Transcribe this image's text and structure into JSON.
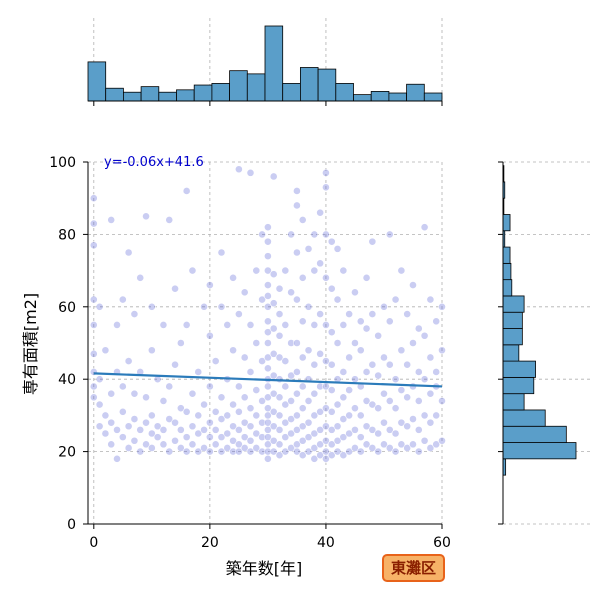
{
  "badge": {
    "label": "東灘区"
  },
  "chart_data": {
    "type": "scatter",
    "xlabel": "築年数[年]",
    "ylabel": "専有面積[m2]",
    "xlim": [
      -1,
      60
    ],
    "ylim": [
      0,
      100
    ],
    "xticks": [
      0,
      20,
      40,
      60
    ],
    "yticks": [
      0,
      20,
      40,
      60,
      80,
      100
    ],
    "grid": true,
    "regression": {
      "equation": "y=-0.06x+41.6",
      "slope": -0.06,
      "intercept": 41.6
    },
    "colors": {
      "point": "#5a63d6",
      "regression": "#2b7bba",
      "bar": "#5a9ec9",
      "badge_fill": "#f7b267",
      "badge_border": "#e8631a",
      "equation": "#0000cc"
    },
    "scatter_points": [
      [
        0,
        35
      ],
      [
        0,
        38
      ],
      [
        0,
        42
      ],
      [
        0,
        47
      ],
      [
        0,
        55
      ],
      [
        0,
        62
      ],
      [
        0,
        77
      ],
      [
        0,
        83
      ],
      [
        0,
        90
      ],
      [
        1,
        27
      ],
      [
        1,
        33
      ],
      [
        1,
        40
      ],
      [
        1,
        60
      ],
      [
        2,
        25
      ],
      [
        2,
        30
      ],
      [
        2,
        48
      ],
      [
        3,
        22
      ],
      [
        3,
        28
      ],
      [
        3,
        36
      ],
      [
        3,
        84
      ],
      [
        4,
        18
      ],
      [
        4,
        26
      ],
      [
        4,
        42
      ],
      [
        4,
        55
      ],
      [
        5,
        24
      ],
      [
        5,
        31
      ],
      [
        5,
        38
      ],
      [
        5,
        62
      ],
      [
        6,
        21
      ],
      [
        6,
        27
      ],
      [
        6,
        45
      ],
      [
        6,
        75
      ],
      [
        7,
        23
      ],
      [
        7,
        29
      ],
      [
        7,
        36
      ],
      [
        7,
        58
      ],
      [
        8,
        20
      ],
      [
        8,
        26
      ],
      [
        8,
        42
      ],
      [
        8,
        68
      ],
      [
        9,
        22
      ],
      [
        9,
        28
      ],
      [
        9,
        35
      ],
      [
        9,
        85
      ],
      [
        10,
        21
      ],
      [
        10,
        25
      ],
      [
        10,
        30
      ],
      [
        10,
        48
      ],
      [
        10,
        60
      ],
      [
        11,
        24
      ],
      [
        11,
        27
      ],
      [
        11,
        40
      ],
      [
        12,
        22
      ],
      [
        12,
        26
      ],
      [
        12,
        34
      ],
      [
        12,
        55
      ],
      [
        13,
        20
      ],
      [
        13,
        29
      ],
      [
        13,
        38
      ],
      [
        13,
        84
      ],
      [
        14,
        23
      ],
      [
        14,
        28
      ],
      [
        14,
        44
      ],
      [
        14,
        65
      ],
      [
        15,
        21
      ],
      [
        15,
        26
      ],
      [
        15,
        32
      ],
      [
        15,
        50
      ],
      [
        16,
        20
      ],
      [
        16,
        24
      ],
      [
        16,
        31
      ],
      [
        16,
        55
      ],
      [
        16,
        92
      ],
      [
        17,
        22
      ],
      [
        17,
        27
      ],
      [
        17,
        36
      ],
      [
        17,
        70
      ],
      [
        18,
        20
      ],
      [
        18,
        25
      ],
      [
        18,
        30
      ],
      [
        18,
        42
      ],
      [
        19,
        21
      ],
      [
        19,
        26
      ],
      [
        19,
        33
      ],
      [
        19,
        60
      ],
      [
        20,
        20
      ],
      [
        20,
        24
      ],
      [
        20,
        28
      ],
      [
        20,
        38
      ],
      [
        20,
        52
      ],
      [
        20,
        66
      ],
      [
        21,
        22
      ],
      [
        21,
        26
      ],
      [
        21,
        31
      ],
      [
        21,
        45
      ],
      [
        22,
        20
      ],
      [
        22,
        24
      ],
      [
        22,
        29
      ],
      [
        22,
        35
      ],
      [
        22,
        60
      ],
      [
        22,
        75
      ],
      [
        23,
        21
      ],
      [
        23,
        25
      ],
      [
        23,
        30
      ],
      [
        23,
        40
      ],
      [
        23,
        55
      ],
      [
        24,
        20
      ],
      [
        24,
        23
      ],
      [
        24,
        27
      ],
      [
        24,
        33
      ],
      [
        24,
        48
      ],
      [
        24,
        68
      ],
      [
        25,
        20
      ],
      [
        25,
        22
      ],
      [
        25,
        26
      ],
      [
        25,
        31
      ],
      [
        25,
        38
      ],
      [
        25,
        58
      ],
      [
        25,
        98
      ],
      [
        26,
        21
      ],
      [
        26,
        24
      ],
      [
        26,
        28
      ],
      [
        26,
        35
      ],
      [
        26,
        46
      ],
      [
        26,
        64
      ],
      [
        27,
        20
      ],
      [
        27,
        23
      ],
      [
        27,
        27
      ],
      [
        27,
        32
      ],
      [
        27,
        42
      ],
      [
        27,
        55
      ],
      [
        27,
        97
      ],
      [
        28,
        21
      ],
      [
        28,
        25
      ],
      [
        28,
        30
      ],
      [
        28,
        37
      ],
      [
        28,
        50
      ],
      [
        28,
        70
      ],
      [
        29,
        20
      ],
      [
        29,
        24
      ],
      [
        29,
        28
      ],
      [
        29,
        34
      ],
      [
        29,
        45
      ],
      [
        29,
        62
      ],
      [
        29,
        80
      ],
      [
        30,
        18
      ],
      [
        30,
        20
      ],
      [
        30,
        22
      ],
      [
        30,
        24
      ],
      [
        30,
        26
      ],
      [
        30,
        28
      ],
      [
        30,
        30
      ],
      [
        30,
        32
      ],
      [
        30,
        35
      ],
      [
        30,
        38
      ],
      [
        30,
        40
      ],
      [
        30,
        43
      ],
      [
        30,
        46
      ],
      [
        30,
        50
      ],
      [
        30,
        53
      ],
      [
        30,
        56
      ],
      [
        30,
        60
      ],
      [
        30,
        63
      ],
      [
        30,
        66
      ],
      [
        30,
        70
      ],
      [
        30,
        74
      ],
      [
        30,
        78
      ],
      [
        30,
        82
      ],
      [
        31,
        20
      ],
      [
        31,
        23
      ],
      [
        31,
        27
      ],
      [
        31,
        31
      ],
      [
        31,
        36
      ],
      [
        31,
        41
      ],
      [
        31,
        47
      ],
      [
        31,
        54
      ],
      [
        31,
        61
      ],
      [
        31,
        69
      ],
      [
        31,
        96
      ],
      [
        32,
        19
      ],
      [
        32,
        22
      ],
      [
        32,
        26
      ],
      [
        32,
        30
      ],
      [
        32,
        35
      ],
      [
        32,
        40
      ],
      [
        32,
        46
      ],
      [
        32,
        52
      ],
      [
        32,
        58
      ],
      [
        32,
        65
      ],
      [
        33,
        20
      ],
      [
        33,
        24
      ],
      [
        33,
        28
      ],
      [
        33,
        33
      ],
      [
        33,
        38
      ],
      [
        33,
        45
      ],
      [
        33,
        55
      ],
      [
        33,
        70
      ],
      [
        34,
        21
      ],
      [
        34,
        25
      ],
      [
        34,
        29
      ],
      [
        34,
        34
      ],
      [
        34,
        41
      ],
      [
        34,
        50
      ],
      [
        34,
        64
      ],
      [
        34,
        80
      ],
      [
        35,
        20
      ],
      [
        35,
        22
      ],
      [
        35,
        26
      ],
      [
        35,
        30
      ],
      [
        35,
        36
      ],
      [
        35,
        42
      ],
      [
        35,
        50
      ],
      [
        35,
        62
      ],
      [
        35,
        75
      ],
      [
        35,
        88
      ],
      [
        35,
        92
      ],
      [
        36,
        19
      ],
      [
        36,
        23
      ],
      [
        36,
        27
      ],
      [
        36,
        32
      ],
      [
        36,
        38
      ],
      [
        36,
        46
      ],
      [
        36,
        56
      ],
      [
        36,
        68
      ],
      [
        36,
        84
      ],
      [
        37,
        20
      ],
      [
        37,
        24
      ],
      [
        37,
        28
      ],
      [
        37,
        34
      ],
      [
        37,
        40
      ],
      [
        37,
        48
      ],
      [
        37,
        60
      ],
      [
        37,
        76
      ],
      [
        38,
        18
      ],
      [
        38,
        21
      ],
      [
        38,
        25
      ],
      [
        38,
        30
      ],
      [
        38,
        36
      ],
      [
        38,
        44
      ],
      [
        38,
        55
      ],
      [
        38,
        70
      ],
      [
        38,
        80
      ],
      [
        39,
        19
      ],
      [
        39,
        22
      ],
      [
        39,
        26
      ],
      [
        39,
        31
      ],
      [
        39,
        38
      ],
      [
        39,
        47
      ],
      [
        39,
        58
      ],
      [
        39,
        72
      ],
      [
        39,
        86
      ],
      [
        40,
        18
      ],
      [
        40,
        20
      ],
      [
        40,
        23
      ],
      [
        40,
        27
      ],
      [
        40,
        32
      ],
      [
        40,
        38
      ],
      [
        40,
        45
      ],
      [
        40,
        55
      ],
      [
        40,
        68
      ],
      [
        40,
        80
      ],
      [
        40,
        93
      ],
      [
        40,
        97
      ],
      [
        41,
        19
      ],
      [
        41,
        22
      ],
      [
        41,
        26
      ],
      [
        41,
        31
      ],
      [
        41,
        37
      ],
      [
        41,
        44
      ],
      [
        41,
        53
      ],
      [
        41,
        65
      ],
      [
        41,
        78
      ],
      [
        42,
        20
      ],
      [
        42,
        23
      ],
      [
        42,
        27
      ],
      [
        42,
        33
      ],
      [
        42,
        40
      ],
      [
        42,
        50
      ],
      [
        42,
        62
      ],
      [
        42,
        76
      ],
      [
        43,
        19
      ],
      [
        43,
        24
      ],
      [
        43,
        29
      ],
      [
        43,
        35
      ],
      [
        43,
        42
      ],
      [
        43,
        55
      ],
      [
        43,
        70
      ],
      [
        44,
        20
      ],
      [
        44,
        25
      ],
      [
        44,
        30
      ],
      [
        44,
        37
      ],
      [
        44,
        46
      ],
      [
        44,
        58
      ],
      [
        45,
        21
      ],
      [
        45,
        26
      ],
      [
        45,
        32
      ],
      [
        45,
        40
      ],
      [
        45,
        50
      ],
      [
        45,
        64
      ],
      [
        46,
        20
      ],
      [
        46,
        24
      ],
      [
        46,
        30
      ],
      [
        46,
        38
      ],
      [
        46,
        48
      ],
      [
        46,
        56
      ],
      [
        47,
        22
      ],
      [
        47,
        27
      ],
      [
        47,
        34
      ],
      [
        47,
        42
      ],
      [
        47,
        54
      ],
      [
        47,
        68
      ],
      [
        48,
        21
      ],
      [
        48,
        26
      ],
      [
        48,
        33
      ],
      [
        48,
        44
      ],
      [
        48,
        58
      ],
      [
        48,
        78
      ],
      [
        49,
        20
      ],
      [
        49,
        25
      ],
      [
        49,
        32
      ],
      [
        49,
        41
      ],
      [
        49,
        52
      ],
      [
        50,
        22
      ],
      [
        50,
        28
      ],
      [
        50,
        36
      ],
      [
        50,
        46
      ],
      [
        50,
        60
      ],
      [
        51,
        21
      ],
      [
        51,
        26
      ],
      [
        51,
        34
      ],
      [
        51,
        44
      ],
      [
        51,
        56
      ],
      [
        51,
        80
      ],
      [
        52,
        20
      ],
      [
        52,
        25
      ],
      [
        52,
        32
      ],
      [
        52,
        40
      ],
      [
        52,
        62
      ],
      [
        53,
        22
      ],
      [
        53,
        28
      ],
      [
        53,
        37
      ],
      [
        53,
        48
      ],
      [
        53,
        70
      ],
      [
        54,
        21
      ],
      [
        54,
        27
      ],
      [
        54,
        35
      ],
      [
        54,
        44
      ],
      [
        54,
        58
      ],
      [
        55,
        22
      ],
      [
        55,
        29
      ],
      [
        55,
        38
      ],
      [
        55,
        50
      ],
      [
        55,
        66
      ],
      [
        56,
        20
      ],
      [
        56,
        26
      ],
      [
        56,
        34
      ],
      [
        56,
        42
      ],
      [
        56,
        54
      ],
      [
        57,
        23
      ],
      [
        57,
        30
      ],
      [
        57,
        40
      ],
      [
        57,
        52
      ],
      [
        57,
        82
      ],
      [
        58,
        21
      ],
      [
        58,
        28
      ],
      [
        58,
        36
      ],
      [
        58,
        46
      ],
      [
        58,
        62
      ],
      [
        59,
        22
      ],
      [
        59,
        30
      ],
      [
        59,
        42
      ],
      [
        59,
        56
      ],
      [
        59,
        38
      ],
      [
        60,
        23
      ],
      [
        60,
        34
      ],
      [
        60,
        48
      ],
      [
        60,
        60
      ]
    ],
    "x_histogram": {
      "bin_edges": [
        -1,
        2.05,
        5.1,
        8.15,
        11.2,
        14.25,
        17.3,
        20.35,
        23.4,
        26.45,
        29.5,
        32.55,
        35.6,
        38.65,
        41.7,
        44.75,
        47.8,
        50.85,
        53.9,
        56.95,
        60
      ],
      "counts": [
        49,
        16,
        11,
        18,
        11,
        14,
        20,
        22,
        38,
        34,
        94,
        22,
        42,
        40,
        22,
        8,
        12,
        10,
        21,
        10
      ]
    },
    "y_histogram": {
      "bin_edges": [
        0,
        4.5,
        9,
        13.5,
        18,
        22.5,
        27,
        31.5,
        36,
        40.5,
        45,
        49.5,
        54,
        58.5,
        63,
        67.5,
        72,
        76.5,
        81,
        85.5,
        90,
        94.5,
        99
      ],
      "counts": [
        0,
        0,
        0,
        3,
        83,
        72,
        48,
        24,
        35,
        37,
        18,
        22,
        22,
        24,
        10,
        9,
        8,
        2,
        8,
        1,
        2,
        1
      ]
    }
  }
}
